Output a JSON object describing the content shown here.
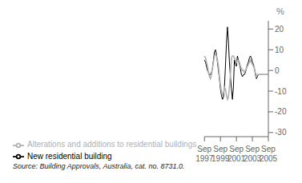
{
  "chart_data": {
    "type": "line",
    "title": "",
    "y_label": "%",
    "annotations": [
      "Source: Building Approvals, Australia, cat. no. 8731.0."
    ],
    "categories": [
      "Sep\n1997",
      null,
      null,
      null,
      null,
      null,
      null,
      null,
      null,
      null,
      null,
      null,
      null,
      null,
      null,
      null,
      "Sep\n1999",
      null,
      null,
      null,
      null,
      null,
      null,
      null,
      null,
      null,
      null,
      null,
      null,
      null,
      null,
      null,
      "Sep\n2001",
      null,
      null,
      null,
      null,
      null,
      null,
      null,
      null,
      null,
      null,
      null,
      null,
      null,
      null,
      null,
      "Sep\n2003",
      null,
      null,
      null,
      null,
      null,
      null,
      null,
      null,
      null,
      null,
      null,
      null,
      null,
      null,
      null,
      "Sep\n2005"
    ],
    "series": [
      {
        "name": "New residential building",
        "color": "#000000",
        "values": [
          5,
          4,
          2,
          0,
          -1,
          -2,
          -2,
          -1,
          1,
          5,
          9,
          10,
          8,
          4,
          0,
          -4,
          -9,
          -12,
          -14,
          -13,
          -8,
          2,
          13,
          21,
          14,
          4,
          -3,
          -9,
          -14,
          -8,
          5,
          3,
          2,
          7,
          5,
          3,
          1,
          -2,
          -3,
          -2,
          -2,
          -1,
          1,
          3,
          4,
          6,
          7,
          6,
          4,
          3,
          1,
          -2,
          -4,
          -3,
          -2,
          -2,
          -2,
          -2,
          -2,
          -2,
          -2,
          -2,
          -2,
          -2,
          -2
        ]
      },
      {
        "name": "Alterations and additions to residential buildings",
        "color": "#b0b0b0",
        "values": [
          7,
          6,
          4,
          2,
          -1,
          -3,
          -4,
          -2,
          1,
          4,
          7,
          8,
          7,
          5,
          2,
          -3,
          -7,
          -10,
          -12,
          -11,
          -8,
          -9,
          -12,
          -14,
          -13,
          -8,
          -2,
          6,
          7,
          7,
          6,
          5,
          4,
          5,
          5,
          4,
          2,
          1,
          0,
          0,
          -1,
          0,
          1,
          2,
          3,
          4,
          5,
          4,
          3,
          2,
          1,
          -1,
          -3,
          -2,
          -2,
          -2,
          -2,
          -2,
          -2,
          -2,
          -2,
          -2,
          -2,
          -2,
          -2
        ]
      }
    ],
    "ylim": [
      -32,
      24
    ],
    "yticks": [
      -30,
      -20,
      -10,
      0,
      10,
      20
    ],
    "grid": false,
    "legend": "bottom"
  }
}
